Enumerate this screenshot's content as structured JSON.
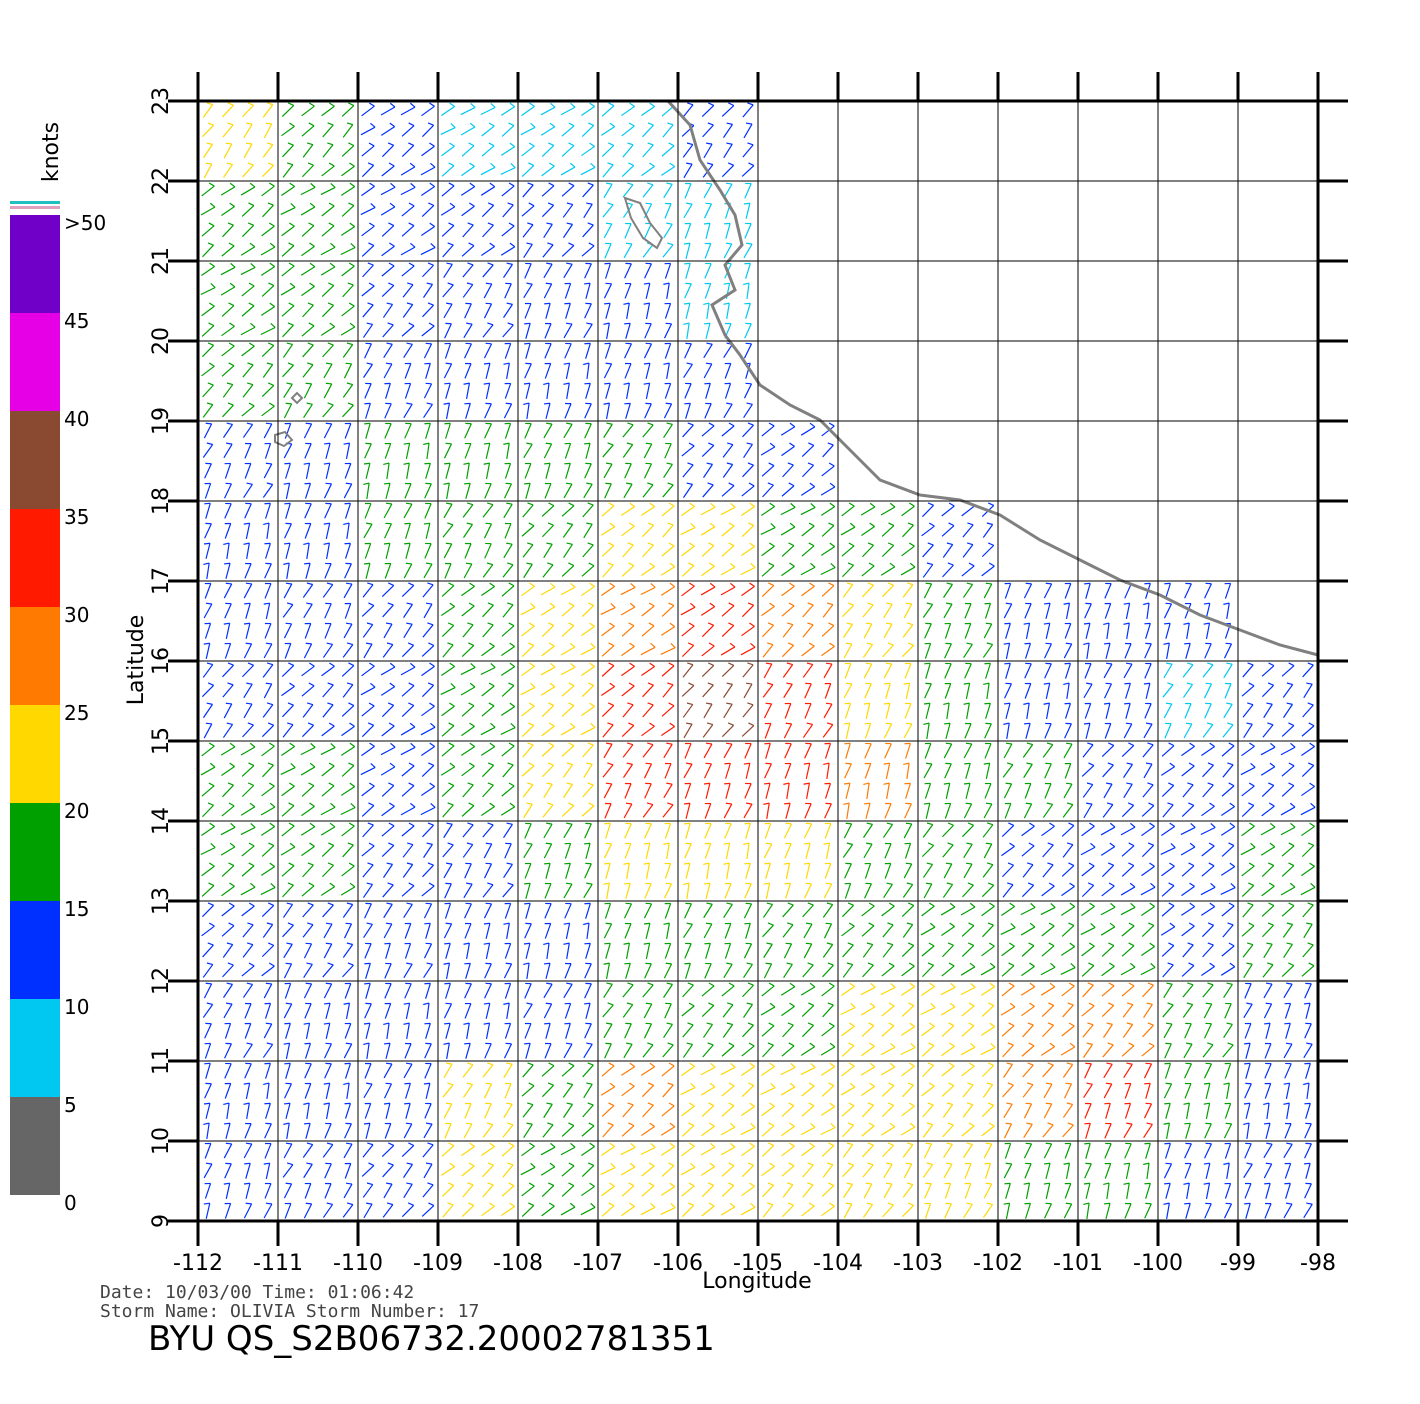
{
  "chart_data": {
    "type": "wind-map",
    "title": "BYU  QS_S2B06732.20002781351",
    "x_label": "Longitude",
    "y_label": "Latitude",
    "info_lines": [
      "Date: 10/03/00   Time: 01:06:42",
      "Storm  Name:  OLIVIA    Storm  Number: 17"
    ],
    "xlim": [
      -112,
      -98
    ],
    "ylim": [
      9,
      23
    ],
    "xticks": [
      -112,
      -111,
      -110,
      -109,
      -108,
      -107,
      -106,
      -105,
      -104,
      -103,
      -102,
      -101,
      -100,
      -99,
      -98
    ],
    "yticks": [
      9,
      10,
      11,
      12,
      13,
      14,
      15,
      16,
      17,
      18,
      19,
      20,
      21,
      22,
      23
    ],
    "grid": true,
    "speed_unit": "knots",
    "speed": [
      [
        20,
        18,
        12,
        8,
        5,
        8,
        10,
        null,
        null,
        null,
        null,
        null,
        null,
        null
      ],
      [
        18,
        17,
        12,
        10,
        10,
        8,
        8,
        null,
        null,
        null,
        null,
        null,
        null,
        null
      ],
      [
        15,
        15,
        13,
        12,
        10,
        10,
        8,
        null,
        null,
        null,
        null,
        null,
        null,
        null
      ],
      [
        15,
        15,
        14,
        13,
        12,
        12,
        10,
        null,
        null,
        null,
        null,
        null,
        null,
        null
      ],
      [
        13,
        14,
        15,
        17,
        15,
        15,
        12,
        10,
        null,
        null,
        null,
        null,
        null,
        null
      ],
      [
        12,
        13,
        15,
        17,
        18,
        20,
        22,
        18,
        15,
        12,
        null,
        null,
        null,
        null
      ],
      [
        12,
        13,
        14,
        16,
        20,
        27,
        30,
        28,
        22,
        18,
        14,
        12,
        10,
        null
      ],
      [
        13,
        14,
        14,
        17,
        22,
        30,
        38,
        32,
        22,
        16,
        12,
        10,
        8,
        10
      ],
      [
        15,
        15,
        14,
        15,
        20,
        30,
        32,
        30,
        25,
        18,
        15,
        12,
        10,
        12
      ],
      [
        15,
        15,
        14,
        13,
        15,
        20,
        22,
        20,
        18,
        17,
        14,
        12,
        12,
        18
      ],
      [
        13,
        13,
        12,
        12,
        14,
        16,
        18,
        18,
        16,
        17,
        18,
        15,
        13,
        18
      ],
      [
        12,
        12,
        11,
        12,
        10,
        18,
        17,
        18,
        22,
        24,
        26,
        28,
        15,
        12
      ],
      [
        12,
        12,
        13,
        22,
        18,
        25,
        22,
        20,
        22,
        24,
        28,
        30,
        16,
        14
      ],
      [
        13,
        13,
        14,
        20,
        16,
        22,
        22,
        20,
        22,
        22,
        18,
        16,
        14,
        12
      ]
    ],
    "colorbar": {
      "lim": [
        0,
        50
      ],
      "ticks": [
        0,
        5,
        10,
        15,
        20,
        25,
        30,
        35,
        40,
        45,
        {
          "value": 50,
          "label": ">50"
        }
      ],
      "colors": [
        "#666666",
        "#00c8f0",
        "#0030ff",
        "#00a000",
        "#ffd800",
        "#ff7a00",
        "#ff1a00",
        "#8a4a32",
        "#e600e6",
        "#7000c8"
      ]
    }
  }
}
